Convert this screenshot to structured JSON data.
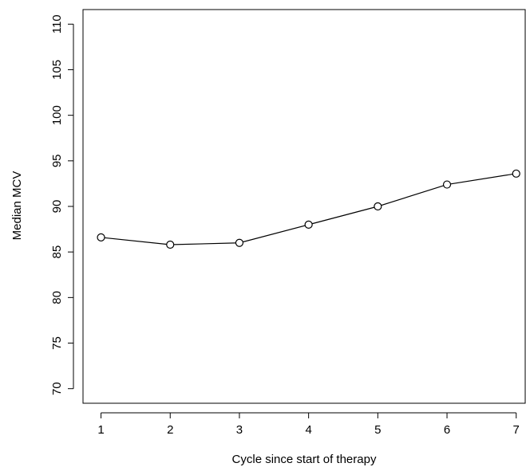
{
  "chart_data": {
    "type": "line",
    "x_label": "Cycle since start of therapy",
    "y_label": "Median MCV",
    "x": [
      1,
      2,
      3,
      4,
      5,
      6,
      7
    ],
    "series": [
      {
        "name": "Median MCV",
        "color": "#000000",
        "values": [
          86.6,
          85.8,
          86.0,
          88.0,
          90.0,
          92.4,
          93.6
        ]
      }
    ],
    "xlim": [
      0.74,
      7.13
    ],
    "ylim": [
      68.4,
      111.6
    ],
    "xticks": [
      1,
      2,
      3,
      4,
      5,
      6,
      7
    ],
    "yticks": [
      70,
      75,
      80,
      85,
      90,
      95,
      100,
      105,
      110
    ],
    "grid": false,
    "markers": "open-circle"
  }
}
